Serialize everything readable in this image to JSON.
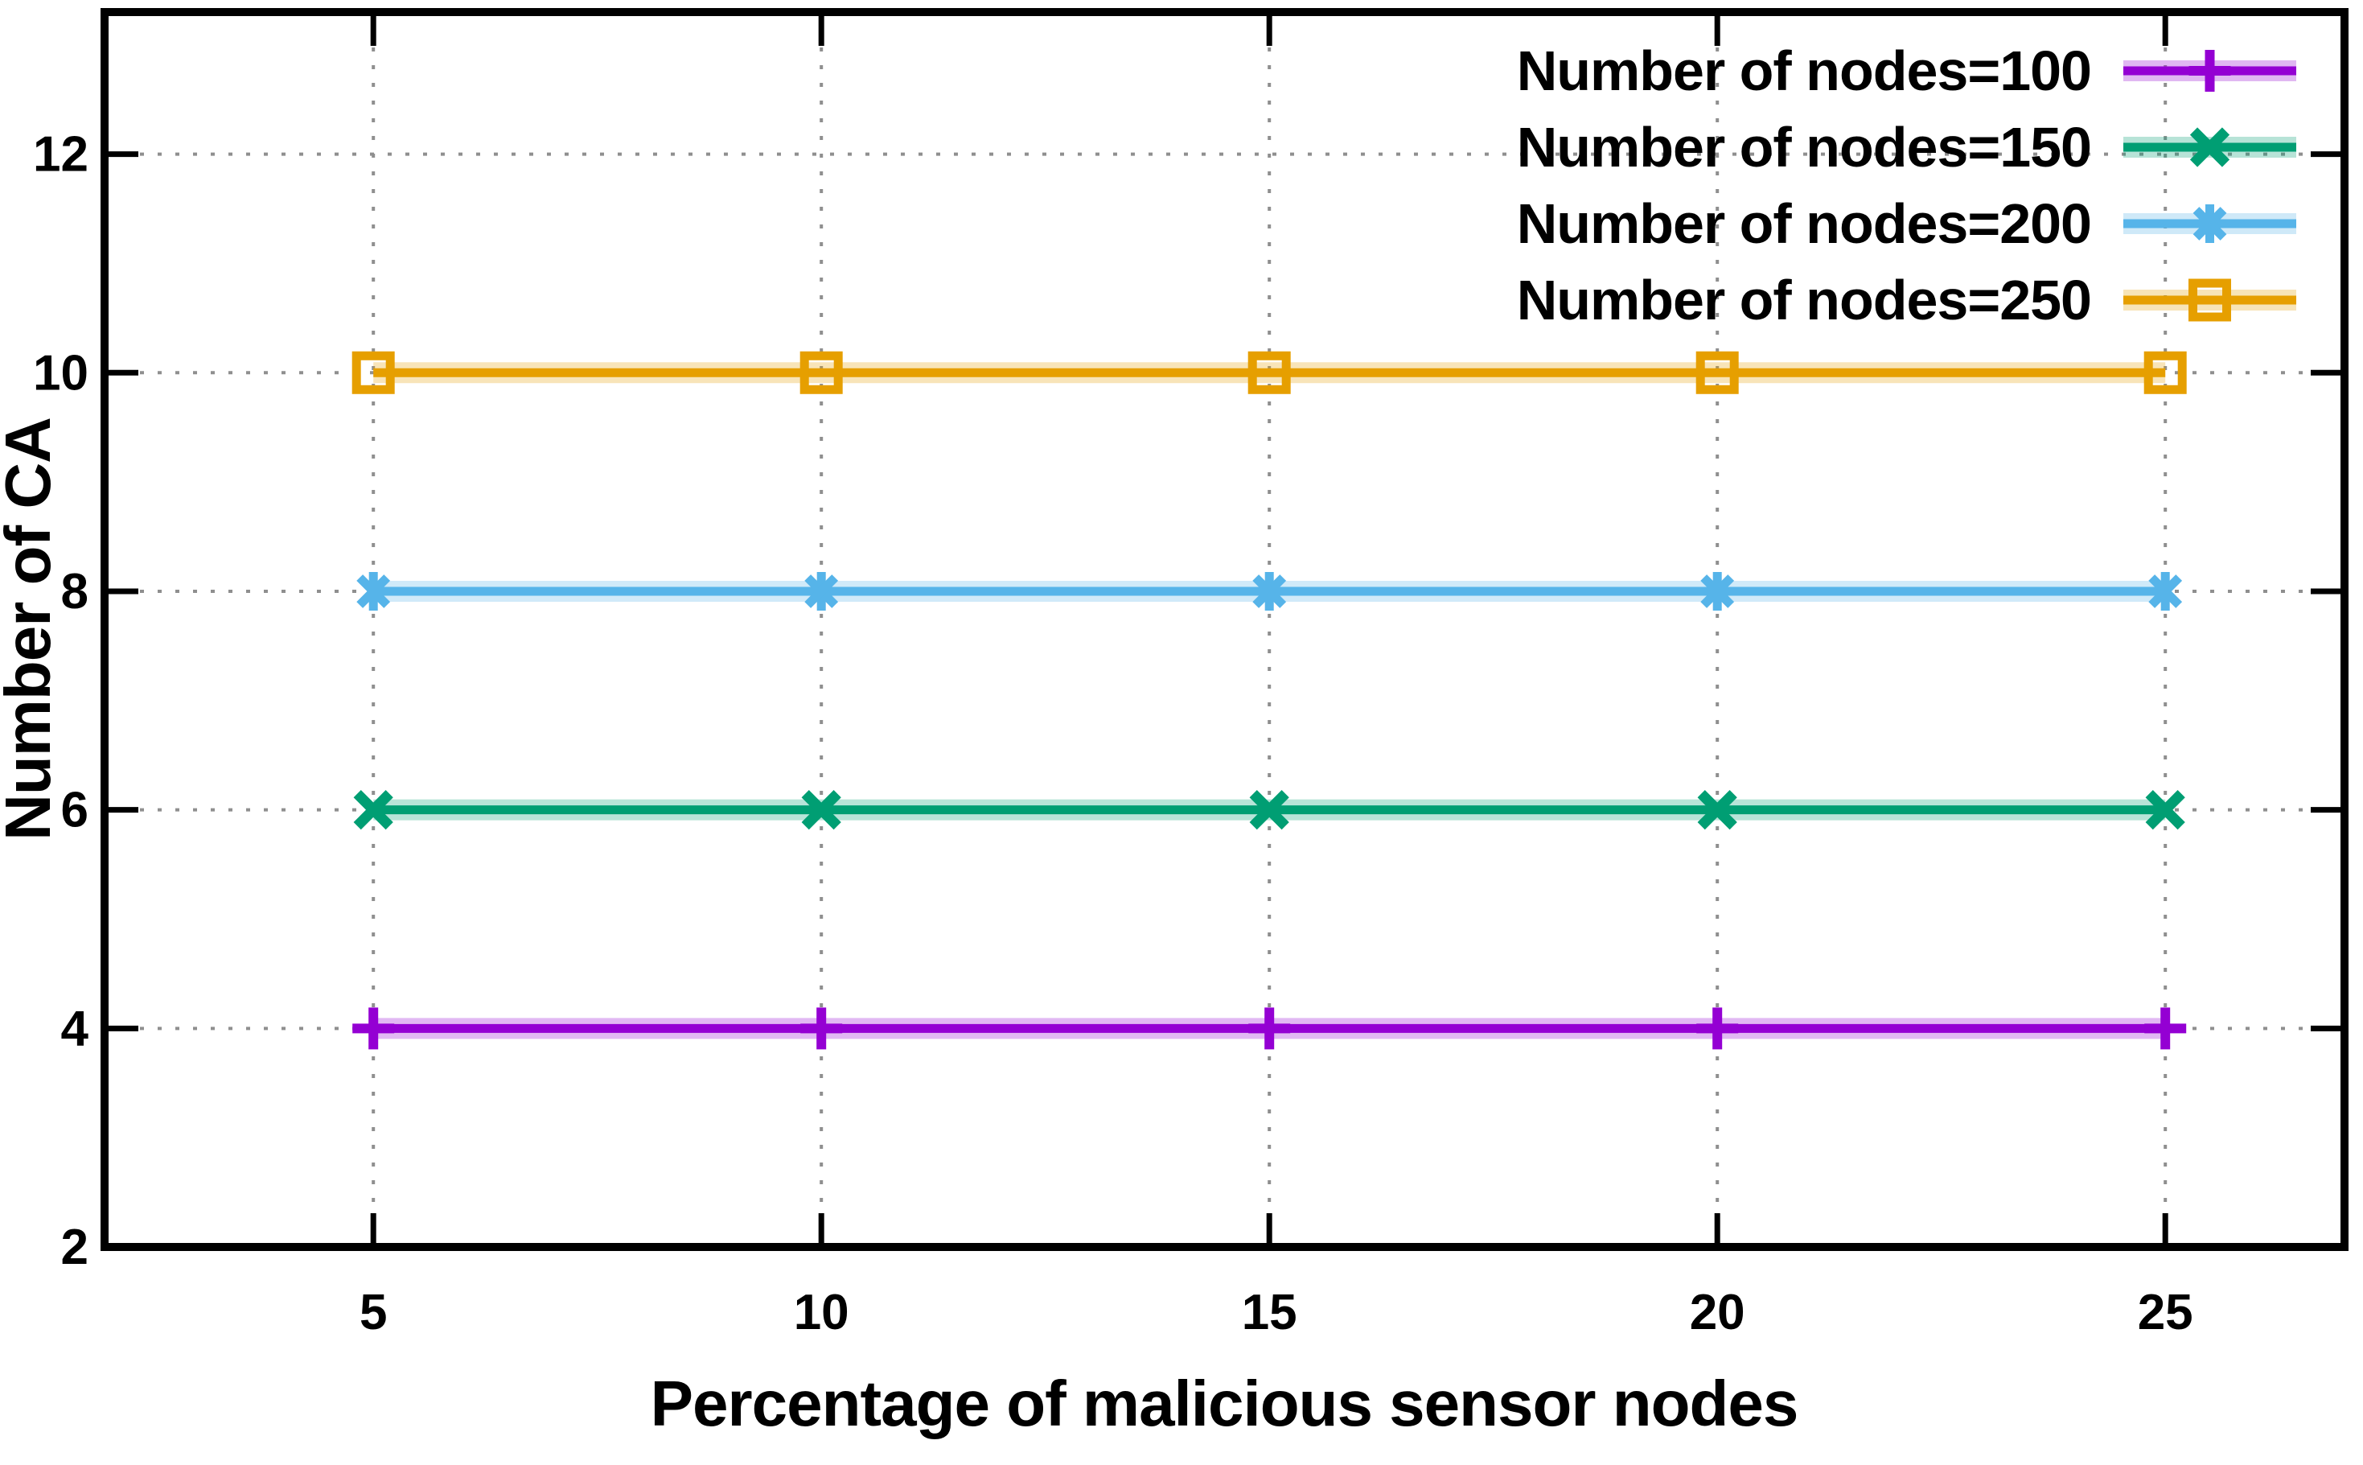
{
  "chart_data": {
    "type": "line",
    "title": "",
    "xlabel": "Percentage of malicious sensor nodes",
    "ylabel": "Number of CA",
    "x": [
      5,
      10,
      15,
      20,
      25
    ],
    "xticks": [
      "5",
      "10",
      "15",
      "20",
      "25"
    ],
    "yticks": [
      "2",
      "4",
      "6",
      "8",
      "10",
      "12"
    ],
    "ytick_values": [
      2,
      4,
      6,
      8,
      10,
      12
    ],
    "xlim": [
      2,
      27
    ],
    "ylim": [
      2,
      13.3
    ],
    "grid": "dotted",
    "grid_color": "#8f8f8f",
    "axis_color": "#000000",
    "background": "#ffffff",
    "legend_position": "top-right",
    "series": [
      {
        "label": "Number of nodes=100",
        "color": "#9400d3",
        "marker": "plus-marker-icon",
        "values": [
          4,
          4,
          4,
          4,
          4
        ]
      },
      {
        "label": "Number of nodes=150",
        "color": "#009e73",
        "marker": "x-marker-icon",
        "values": [
          6,
          6,
          6,
          6,
          6
        ]
      },
      {
        "label": "Number of nodes=200",
        "color": "#56b4e9",
        "marker": "asterisk-marker-icon",
        "values": [
          8,
          8,
          8,
          8,
          8
        ]
      },
      {
        "label": "Number of nodes=250",
        "color": "#e69f00",
        "marker": "open-square-marker-icon",
        "values": [
          10,
          10,
          10,
          10,
          10
        ]
      }
    ]
  }
}
